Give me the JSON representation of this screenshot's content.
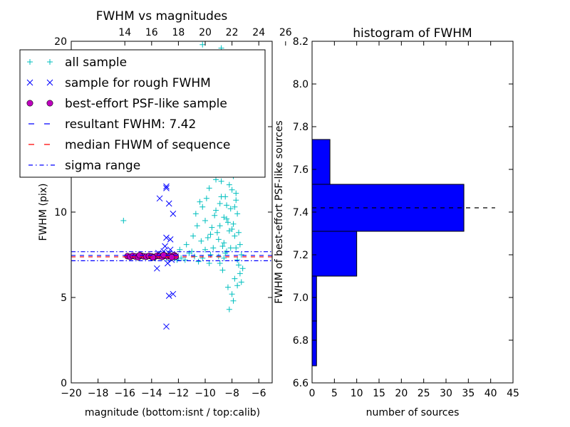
{
  "chart_data": [
    {
      "type": "scatter",
      "title": "FWHM vs magnitudes",
      "xlabel": "magnitude (bottom:isnt / top:calib)",
      "ylabel": "FWHM (pix)",
      "xlim": [
        -20,
        -5
      ],
      "ylim": [
        0,
        20
      ],
      "xticks": [
        "−20",
        "−18",
        "−16",
        "−14",
        "−12",
        "−10",
        "−8",
        "−6"
      ],
      "xtick_values": [
        -20,
        -18,
        -16,
        -14,
        -12,
        -10,
        -8,
        -6
      ],
      "top_xticks": [
        "14",
        "16",
        "18",
        "20",
        "22",
        "24",
        "26"
      ],
      "top_xtick_values": [
        14,
        16,
        18,
        20,
        22,
        24,
        26
      ],
      "top_axis_offset": 30,
      "yticks": [
        "0",
        "5",
        "10",
        "15",
        "20"
      ],
      "ytick_values": [
        0,
        5,
        10,
        15,
        20
      ],
      "grid": false,
      "legend_position": "upper-left",
      "legend": [
        {
          "label": "all sample",
          "marker": "plus",
          "color": "#00bfbf"
        },
        {
          "label": "sample for rough FWHM",
          "marker": "x",
          "color": "#0000ff"
        },
        {
          "label": "best-effort PSF-like sample",
          "marker": "circle",
          "color": "#bf00bf"
        },
        {
          "label": "resultant FWHM: 7.42",
          "marker": "dash",
          "color": "#0000ff"
        },
        {
          "label": "median FHWM of sequence",
          "marker": "dash",
          "color": "#ff0000"
        },
        {
          "label": "sigma range",
          "marker": "dashdot",
          "color": "#0000ff"
        }
      ],
      "hlines": {
        "resultant": 7.42,
        "median": 7.42,
        "sigma_low": 7.15,
        "sigma_high": 7.68
      },
      "series": [
        {
          "name": "all sample",
          "marker": "plus",
          "color": "#00bfbf",
          "points": [
            [
              -16.1,
              9.5
            ],
            [
              -12.3,
              7.5
            ],
            [
              -11.8,
              7.3
            ],
            [
              -11.2,
              7.6
            ],
            [
              -10.8,
              7.4
            ],
            [
              -10.2,
              7.3
            ],
            [
              -9.6,
              7.5
            ],
            [
              -9.0,
              7.4
            ],
            [
              -8.5,
              7.6
            ],
            [
              -11.5,
              7.2
            ],
            [
              -11.0,
              7.7
            ],
            [
              -10.5,
              7.1
            ],
            [
              -10.0,
              7.8
            ],
            [
              -9.8,
              8.5
            ],
            [
              -9.5,
              9.1
            ],
            [
              -9.3,
              9.8
            ],
            [
              -9.1,
              8.8
            ],
            [
              -8.9,
              10.5
            ],
            [
              -8.8,
              11.8
            ],
            [
              -8.7,
              12.7
            ],
            [
              -8.6,
              8.2
            ],
            [
              -8.5,
              10.9
            ],
            [
              -8.4,
              9.6
            ],
            [
              -8.3,
              12.2
            ],
            [
              -8.2,
              8.9
            ],
            [
              -8.1,
              10.2
            ],
            [
              -8.0,
              11.3
            ],
            [
              -7.9,
              9.3
            ],
            [
              -7.8,
              8.6
            ],
            [
              -7.7,
              7.9
            ],
            [
              -7.6,
              7.2
            ],
            [
              -7.5,
              6.9
            ],
            [
              -7.4,
              6.4
            ],
            [
              -7.3,
              5.9
            ],
            [
              -8.3,
              5.6
            ],
            [
              -8.0,
              5.2
            ],
            [
              -7.9,
              4.8
            ],
            [
              -8.2,
              4.3
            ],
            [
              -7.8,
              6.1
            ],
            [
              -7.6,
              5.7
            ],
            [
              -8.7,
              6.6
            ],
            [
              -8.9,
              7.0
            ],
            [
              -9.4,
              7.9
            ],
            [
              -9.7,
              7.0
            ],
            [
              -10.3,
              8.3
            ],
            [
              -10.6,
              9.2
            ],
            [
              -9.9,
              10.8
            ],
            [
              -9.2,
              11.9
            ],
            [
              -8.6,
              13.1
            ],
            [
              -9.0,
              14.2
            ],
            [
              -9.6,
              13.0
            ],
            [
              -10.1,
              14.6
            ],
            [
              -10.4,
              12.4
            ],
            [
              -9.3,
              16.0
            ],
            [
              -9.1,
              18.5
            ],
            [
              -9.5,
              19.1
            ],
            [
              -8.8,
              19.6
            ],
            [
              -9.9,
              17.0
            ],
            [
              -10.2,
              19.8
            ],
            [
              -8.5,
              14.8
            ],
            [
              -8.1,
              13.4
            ],
            [
              -7.9,
              12.1
            ],
            [
              -7.7,
              10.7
            ],
            [
              -7.6,
              9.9
            ],
            [
              -7.5,
              8.8
            ],
            [
              -7.4,
              8.1
            ],
            [
              -8.4,
              7.7
            ],
            [
              -8.6,
              7.3
            ],
            [
              -7.3,
              7.5
            ],
            [
              -7.2,
              6.7
            ],
            [
              -11.9,
              7.8
            ],
            [
              -12.1,
              7.2
            ],
            [
              -12.6,
              7.4
            ],
            [
              -12.9,
              7.3
            ],
            [
              -13.4,
              7.5
            ],
            [
              -13.8,
              7.3
            ],
            [
              -14.5,
              7.4
            ],
            [
              -15.2,
              7.4
            ],
            [
              -11.4,
              8.1
            ],
            [
              -10.9,
              8.6
            ],
            [
              -10.7,
              9.9
            ],
            [
              -10.4,
              10.6
            ],
            [
              -10.0,
              9.5
            ],
            [
              -9.7,
              11.4
            ],
            [
              -9.4,
              12.6
            ],
            [
              -9.2,
              10.1
            ],
            [
              -8.9,
              9.2
            ],
            [
              -8.7,
              8.0
            ],
            [
              -8.4,
              10.4
            ],
            [
              -8.2,
              11.6
            ],
            [
              -8.0,
              9.0
            ],
            [
              -7.8,
              10.3
            ],
            [
              -7.7,
              11.1
            ],
            [
              -8.3,
              9.4
            ],
            [
              -8.1,
              7.9
            ],
            [
              -8.6,
              9.7
            ],
            [
              -8.8,
              10.9
            ],
            [
              -9.0,
              8.4
            ],
            [
              -9.6,
              8.7
            ],
            [
              -10.2,
              10.3
            ]
          ]
        },
        {
          "name": "sample for rough FWHM",
          "marker": "x",
          "color": "#0000ff",
          "points": [
            [
              -12.9,
              11.5
            ],
            [
              -12.9,
              11.4
            ],
            [
              -13.4,
              10.8
            ],
            [
              -12.7,
              10.5
            ],
            [
              -12.4,
              9.9
            ],
            [
              -12.9,
              8.5
            ],
            [
              -12.6,
              8.4
            ],
            [
              -13.0,
              8.0
            ],
            [
              -12.6,
              7.8
            ],
            [
              -12.7,
              7.6
            ],
            [
              -13.6,
              6.7
            ],
            [
              -12.4,
              5.2
            ],
            [
              -12.7,
              5.1
            ],
            [
              -12.9,
              3.3
            ],
            [
              -13.5,
              7.6
            ],
            [
              -12.2,
              7.4
            ],
            [
              -12.8,
              7.0
            ],
            [
              -13.1,
              7.7
            ],
            [
              -13.9,
              7.3
            ],
            [
              -12.5,
              7.2
            ]
          ]
        },
        {
          "name": "best-effort PSF-like sample",
          "marker": "circle",
          "color": "#bf00bf",
          "points": [
            [
              -15.8,
              7.42
            ],
            [
              -15.6,
              7.38
            ],
            [
              -15.4,
              7.44
            ],
            [
              -15.2,
              7.4
            ],
            [
              -15.0,
              7.36
            ],
            [
              -14.8,
              7.45
            ],
            [
              -14.6,
              7.41
            ],
            [
              -14.4,
              7.39
            ],
            [
              -14.2,
              7.43
            ],
            [
              -14.0,
              7.4
            ],
            [
              -13.8,
              7.37
            ],
            [
              -13.6,
              7.44
            ],
            [
              -13.4,
              7.42
            ],
            [
              -13.2,
              7.38
            ],
            [
              -13.0,
              7.45
            ],
            [
              -12.8,
              7.41
            ],
            [
              -12.6,
              7.43
            ],
            [
              -12.4,
              7.39
            ],
            [
              -12.3,
              7.47
            ],
            [
              -12.2,
              7.4
            ],
            [
              -14.9,
              7.47
            ],
            [
              -13.9,
              7.35
            ],
            [
              -13.1,
              7.48
            ],
            [
              -12.5,
              7.36
            ]
          ]
        }
      ]
    },
    {
      "type": "bar",
      "orientation": "horizontal",
      "title": "histogram of FWHM",
      "xlabel": "number of sources",
      "ylabel": "FWHM of best-effort PSF-like sources",
      "xlim": [
        0,
        45
      ],
      "ylim": [
        6.6,
        8.2
      ],
      "xticks": [
        "0",
        "5",
        "10",
        "15",
        "20",
        "25",
        "30",
        "35",
        "40",
        "45"
      ],
      "xtick_values": [
        0,
        5,
        10,
        15,
        20,
        25,
        30,
        35,
        40,
        45
      ],
      "yticks": [
        "6.6",
        "6.8",
        "7.0",
        "7.2",
        "7.4",
        "7.6",
        "7.8",
        "8.0",
        "8.2"
      ],
      "ytick_values": [
        6.6,
        6.8,
        7.0,
        7.2,
        7.4,
        7.6,
        7.8,
        8.0,
        8.2
      ],
      "grid": false,
      "bar_color": "#0000ff",
      "hline": 7.42,
      "bins": [
        {
          "lo": 6.68,
          "hi": 6.89,
          "count": 1
        },
        {
          "lo": 6.89,
          "hi": 7.1,
          "count": 1
        },
        {
          "lo": 7.1,
          "hi": 7.31,
          "count": 10
        },
        {
          "lo": 7.31,
          "hi": 7.53,
          "count": 34
        },
        {
          "lo": 7.53,
          "hi": 7.74,
          "count": 4
        }
      ]
    }
  ]
}
